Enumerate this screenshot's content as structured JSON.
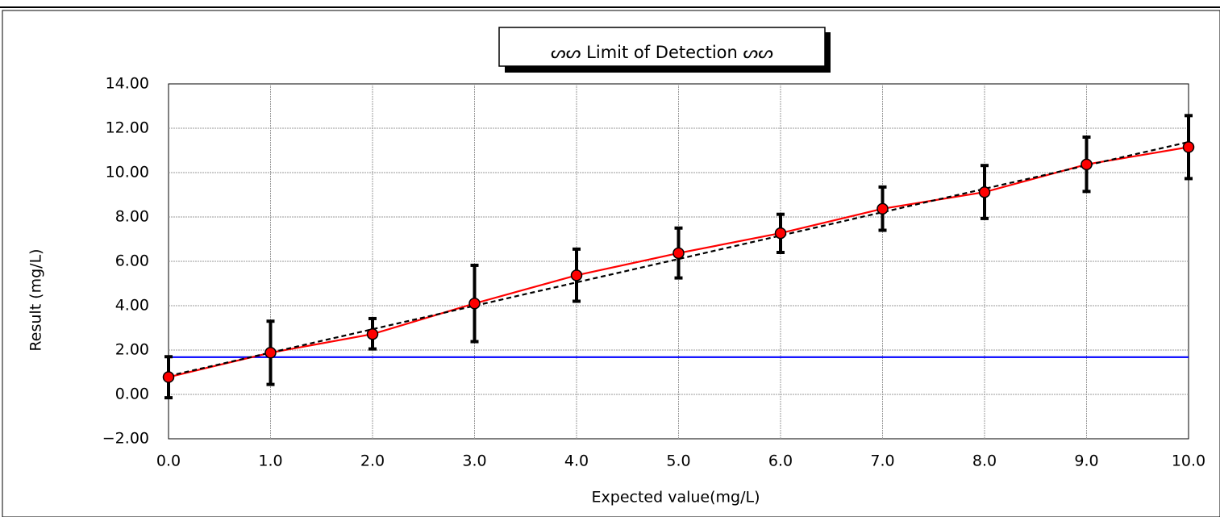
{
  "chart_data": {
    "type": "line",
    "title": "ᔕᔕ Limit of Detection ᔕᔕ",
    "xlabel": "Expected value(mg/L)",
    "ylabel": "Result (mg/L)",
    "xlim": [
      0,
      10
    ],
    "ylim": [
      -2,
      14
    ],
    "x_ticks": [
      "0.0",
      "1.0",
      "2.0",
      "3.0",
      "4.0",
      "5.0",
      "6.0",
      "7.0",
      "8.0",
      "9.0",
      "10.0"
    ],
    "y_ticks": [
      "-2.00",
      "0.00",
      "2.00",
      "4.00",
      "6.00",
      "8.00",
      "10.00",
      "12.00",
      "14.00"
    ],
    "grid": true,
    "series": [
      {
        "x": [
          0,
          1,
          2,
          3,
          4,
          5,
          6,
          7,
          8,
          9,
          10
        ],
        "values": [
          0.78,
          1.88,
          2.72,
          4.1,
          5.37,
          6.37,
          7.27,
          8.37,
          9.12,
          10.37,
          11.15
        ],
        "err_low": [
          -0.15,
          0.45,
          2.05,
          2.38,
          4.2,
          5.25,
          6.4,
          7.4,
          7.93,
          9.15,
          9.73
        ],
        "err_high": [
          1.7,
          3.3,
          3.42,
          5.82,
          6.55,
          7.5,
          8.12,
          9.35,
          10.32,
          11.6,
          12.57
        ],
        "color": "#ff0000",
        "marker": "circle"
      },
      {
        "x": [
          0,
          10
        ],
        "values": [
          0.83,
          11.38
        ],
        "color": "#000000",
        "style": "dashed"
      },
      {
        "x": [
          0,
          10
        ],
        "values": [
          1.68,
          1.68
        ],
        "color": "#0000ff",
        "style": "solid"
      }
    ]
  }
}
